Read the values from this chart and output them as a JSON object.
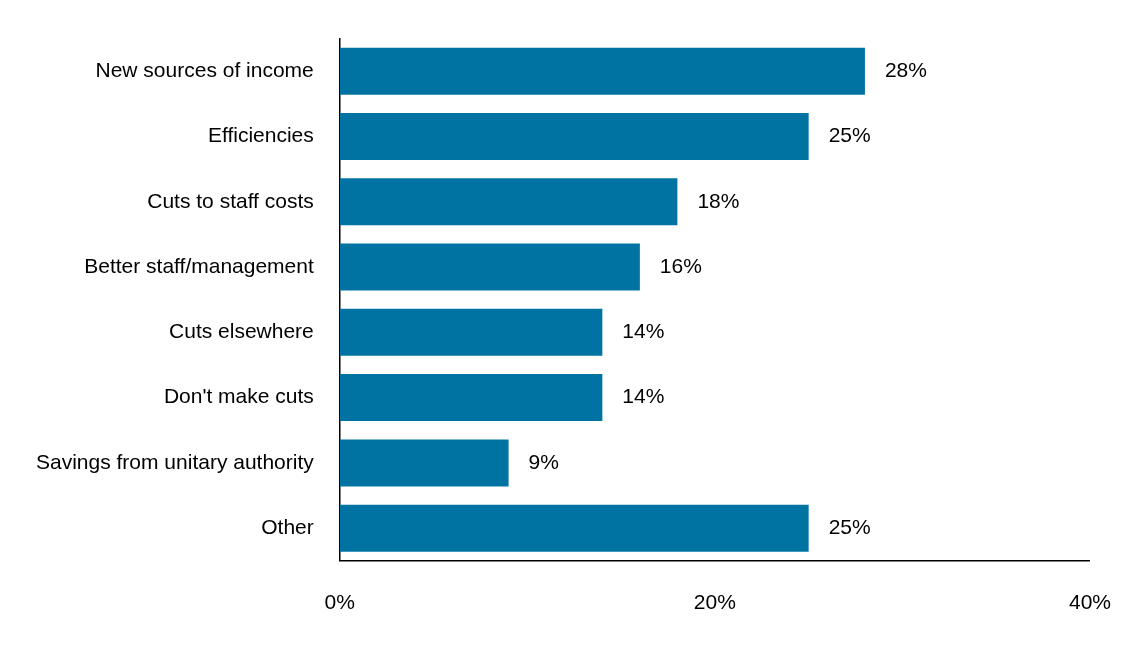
{
  "chart_data": {
    "type": "bar",
    "orientation": "horizontal",
    "categories": [
      "New sources of income",
      "Efficiencies",
      "Cuts to staff costs",
      "Better staff/management",
      "Cuts elsewhere",
      "Don't make cuts",
      "Savings from unitary authority",
      "Other"
    ],
    "values": [
      28,
      25,
      18,
      16,
      14,
      14,
      9,
      25
    ],
    "value_labels": [
      "28%",
      "25%",
      "18%",
      "16%",
      "14%",
      "14%",
      "9%",
      "25%"
    ],
    "color": "#0073a3",
    "xlim": [
      0,
      40
    ],
    "xticks": [
      {
        "value": 0,
        "label": "0%"
      },
      {
        "value": 20,
        "label": "20%"
      },
      {
        "value": 40,
        "label": "40%"
      }
    ],
    "grid": false,
    "legend": false
  }
}
